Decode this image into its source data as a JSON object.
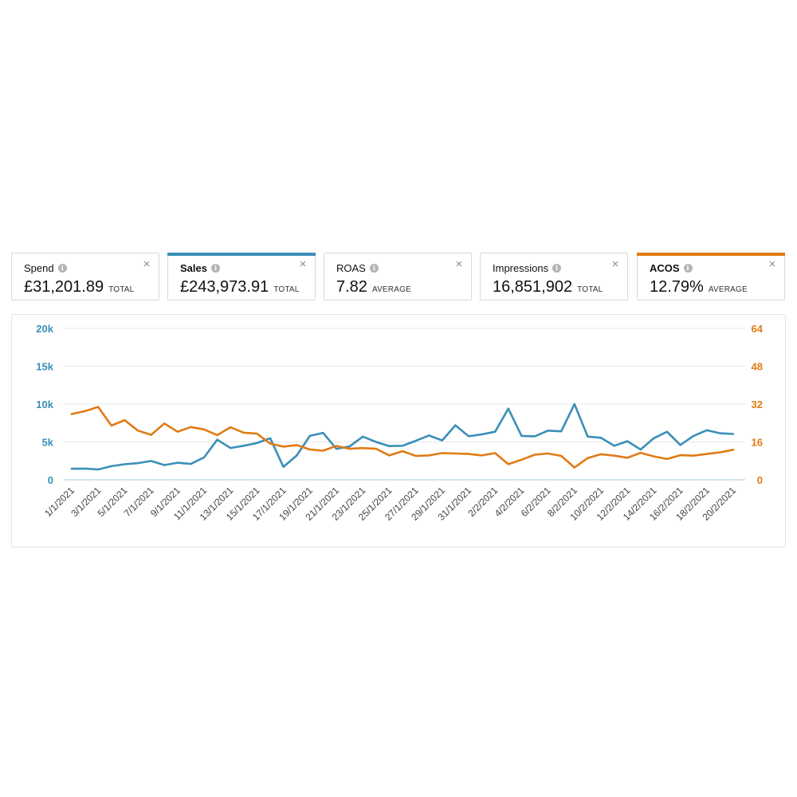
{
  "metrics": [
    {
      "label": "Spend",
      "value": "£31,201.89",
      "unit": "TOTAL",
      "selected": false,
      "accent": ""
    },
    {
      "label": "Sales",
      "value": "£243,973.91",
      "unit": "TOTAL",
      "selected": true,
      "accent": "#3a8fb7"
    },
    {
      "label": "ROAS",
      "value": "7.82",
      "unit": "AVERAGE",
      "selected": false,
      "accent": ""
    },
    {
      "label": "Impressions",
      "value": "16,851,902",
      "unit": "TOTAL",
      "selected": false,
      "accent": ""
    },
    {
      "label": "ACOS",
      "value": "12.79%",
      "unit": "AVERAGE",
      "selected": true,
      "accent": "#e07b14"
    }
  ],
  "icons": {
    "info": "info-icon",
    "close": "close-icon"
  },
  "colors": {
    "sales": "#3a8fb7",
    "acos": "#e07b14",
    "grid": "#e8e8e8",
    "xaxis": "#a9cde0"
  },
  "chart_data": {
    "type": "line",
    "x": [
      "1/1/2021",
      "2/1/2021",
      "3/1/2021",
      "4/1/2021",
      "5/1/2021",
      "6/1/2021",
      "7/1/2021",
      "8/1/2021",
      "9/1/2021",
      "10/1/2021",
      "11/1/2021",
      "12/1/2021",
      "13/1/2021",
      "14/1/2021",
      "15/1/2021",
      "16/1/2021",
      "17/1/2021",
      "18/1/2021",
      "19/1/2021",
      "20/1/2021",
      "21/1/2021",
      "22/1/2021",
      "23/1/2021",
      "24/1/2021",
      "25/1/2021",
      "26/1/2021",
      "27/1/2021",
      "28/1/2021",
      "29/1/2021",
      "30/1/2021",
      "31/1/2021",
      "1/2/2021",
      "2/2/2021",
      "3/2/2021",
      "4/2/2021",
      "5/2/2021",
      "6/2/2021",
      "7/2/2021",
      "8/2/2021",
      "9/2/2021",
      "10/2/2021",
      "11/2/2021",
      "12/2/2021",
      "13/2/2021",
      "14/2/2021",
      "15/2/2021",
      "16/2/2021",
      "17/2/2021",
      "18/2/2021",
      "19/2/2021",
      "20/2/2021"
    ],
    "x_tick_labels": [
      "1/1/2021",
      "3/1/2021",
      "5/1/2021",
      "7/1/2021",
      "9/1/2021",
      "11/1/2021",
      "13/1/2021",
      "15/1/2021",
      "17/1/2021",
      "19/1/2021",
      "21/1/2021",
      "23/1/2021",
      "25/1/2021",
      "27/1/2021",
      "29/1/2021",
      "31/1/2021",
      "2/2/2021",
      "4/2/2021",
      "6/2/2021",
      "8/2/2021",
      "10/2/2021",
      "12/2/2021",
      "14/2/2021",
      "16/2/2021",
      "18/2/2021",
      "20/2/2021"
    ],
    "y_left": {
      "ticks": [
        0,
        5000,
        10000,
        15000,
        20000
      ],
      "tick_labels": [
        "0",
        "5k",
        "10k",
        "15k",
        "20k"
      ],
      "range": [
        0,
        20000
      ]
    },
    "y_right": {
      "ticks": [
        0,
        16,
        32,
        48,
        64
      ],
      "tick_labels": [
        "0",
        "16",
        "32",
        "48",
        "64"
      ],
      "range": [
        0,
        64
      ]
    },
    "grid": true,
    "series": [
      {
        "name": "Sales",
        "axis": "left",
        "color": "#3a8fb7",
        "values": [
          1450,
          1480,
          1370,
          1800,
          2050,
          2200,
          2480,
          1950,
          2250,
          2100,
          2950,
          5300,
          4200,
          4500,
          4850,
          5500,
          1700,
          3200,
          5800,
          6200,
          4100,
          4400,
          5700,
          5000,
          4450,
          4500,
          5150,
          5850,
          5200,
          7200,
          5750,
          6000,
          6350,
          9400,
          5800,
          5750,
          6500,
          6400,
          10000,
          5700,
          5550,
          4500,
          5100,
          4000,
          5500,
          6350,
          4600,
          5800,
          6550,
          6150,
          6050
        ]
      },
      {
        "name": "ACOS",
        "axis": "right",
        "color": "#e07b14",
        "values": [
          27.8,
          29.0,
          30.8,
          22.9,
          25.2,
          20.8,
          19.0,
          23.8,
          20.3,
          22.3,
          21.3,
          18.9,
          22.2,
          19.9,
          19.5,
          15.3,
          14.0,
          14.7,
          12.8,
          12.3,
          14.3,
          13.1,
          13.4,
          13.1,
          10.3,
          12.1,
          10.1,
          10.3,
          11.3,
          11.1,
          10.9,
          10.3,
          11.3,
          6.6,
          8.5,
          10.6,
          11.1,
          10.1,
          5.2,
          9.2,
          10.8,
          10.2,
          9.3,
          11.4,
          9.9,
          8.8,
          10.4,
          10.2,
          10.9,
          11.6,
          12.7
        ]
      }
    ]
  }
}
